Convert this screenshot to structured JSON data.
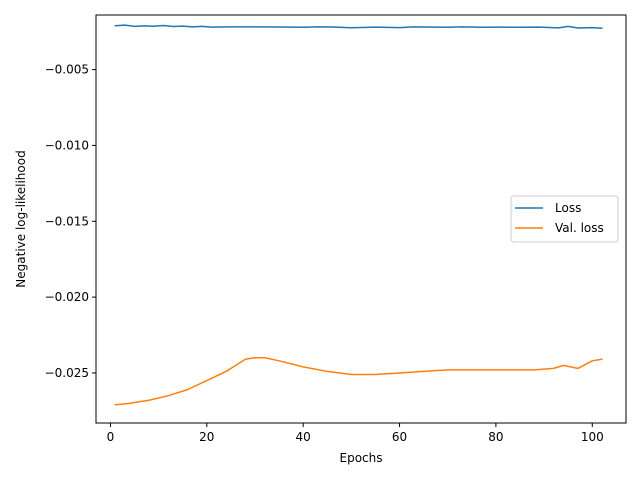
{
  "chart_data": {
    "type": "line",
    "title": "",
    "xlabel": "Epochs",
    "ylabel": "Negative log-likelihood",
    "xlim": [
      -3,
      107
    ],
    "ylim": [
      -0.0283,
      -0.0014
    ],
    "xticks": [
      0,
      20,
      40,
      60,
      80,
      100
    ],
    "yticks": [
      -0.005,
      -0.01,
      -0.015,
      -0.02,
      -0.025
    ],
    "ytick_labels": [
      "−0.005",
      "−0.010",
      "−0.015",
      "−0.020",
      "−0.025"
    ],
    "grid": false,
    "legend": {
      "placement": "center-right"
    },
    "series": [
      {
        "name": "Loss",
        "color": "#1f77b4",
        "points": [
          [
            1,
            -0.00211
          ],
          [
            3,
            -0.00207
          ],
          [
            5,
            -0.00215
          ],
          [
            7,
            -0.00212
          ],
          [
            9,
            -0.00214
          ],
          [
            11,
            -0.00209
          ],
          [
            13,
            -0.00216
          ],
          [
            15,
            -0.00213
          ],
          [
            17,
            -0.00218
          ],
          [
            19,
            -0.00215
          ],
          [
            21,
            -0.0022
          ],
          [
            25,
            -0.00218
          ],
          [
            30,
            -0.00218
          ],
          [
            35,
            -0.00219
          ],
          [
            40,
            -0.00221
          ],
          [
            43,
            -0.00218
          ],
          [
            46,
            -0.00219
          ],
          [
            50,
            -0.00224
          ],
          [
            55,
            -0.0022
          ],
          [
            60,
            -0.00223
          ],
          [
            63,
            -0.00218
          ],
          [
            67,
            -0.0022
          ],
          [
            70,
            -0.00221
          ],
          [
            73,
            -0.00218
          ],
          [
            77,
            -0.00221
          ],
          [
            81,
            -0.0022
          ],
          [
            85,
            -0.00221
          ],
          [
            89,
            -0.0022
          ],
          [
            93,
            -0.00225
          ],
          [
            95,
            -0.00215
          ],
          [
            97,
            -0.00226
          ],
          [
            100,
            -0.00223
          ],
          [
            102,
            -0.00227
          ]
        ]
      },
      {
        "name": "Val. loss",
        "color": "#ff7f0e",
        "points": [
          [
            1,
            -0.0271
          ],
          [
            4,
            -0.027
          ],
          [
            8,
            -0.0268
          ],
          [
            12,
            -0.0265
          ],
          [
            16,
            -0.0261
          ],
          [
            20,
            -0.0255
          ],
          [
            24,
            -0.0249
          ],
          [
            26,
            -0.0245
          ],
          [
            28,
            -0.0241
          ],
          [
            30,
            -0.024
          ],
          [
            32,
            -0.024
          ],
          [
            35,
            -0.0242
          ],
          [
            40,
            -0.0246
          ],
          [
            45,
            -0.0249
          ],
          [
            50,
            -0.0251
          ],
          [
            55,
            -0.0251
          ],
          [
            60,
            -0.025
          ],
          [
            65,
            -0.0249
          ],
          [
            70,
            -0.0248
          ],
          [
            75,
            -0.0248
          ],
          [
            80,
            -0.0248
          ],
          [
            85,
            -0.0248
          ],
          [
            88,
            -0.0248
          ],
          [
            92,
            -0.0247
          ],
          [
            94,
            -0.0245
          ],
          [
            97,
            -0.0247
          ],
          [
            100,
            -0.0242
          ],
          [
            102,
            -0.0241
          ]
        ]
      }
    ]
  }
}
